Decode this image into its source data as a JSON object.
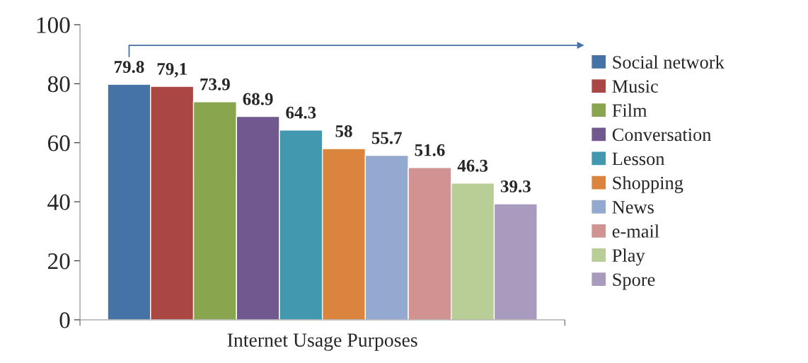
{
  "chart_data": {
    "type": "bar",
    "xlabel": "Internet Usage Purposes",
    "categories": [
      null
    ],
    "ylim": [
      0,
      100
    ],
    "yticks": [
      0,
      20,
      40,
      60,
      80,
      100
    ],
    "grid": false,
    "legend": "right",
    "series": [
      {
        "name": "Social network",
        "color": "#4572a7",
        "values": [
          79.8
        ],
        "value_labels": [
          "79.8"
        ]
      },
      {
        "name": "Music",
        "color": "#aa4643",
        "values": [
          79.1
        ],
        "value_labels": [
          "79,1"
        ]
      },
      {
        "name": "Film",
        "color": "#89a54e",
        "values": [
          73.9
        ],
        "value_labels": [
          "73.9"
        ]
      },
      {
        "name": "Conversation",
        "color": "#71588f",
        "values": [
          68.9
        ],
        "value_labels": [
          "68.9"
        ]
      },
      {
        "name": "Lesson",
        "color": "#4198af",
        "values": [
          64.3
        ],
        "value_labels": [
          "64.3"
        ]
      },
      {
        "name": "Shopping",
        "color": "#db843d",
        "values": [
          58
        ],
        "value_labels": [
          "58"
        ]
      },
      {
        "name": "News",
        "color": "#93a9cf",
        "values": [
          55.7
        ],
        "value_labels": [
          "55.7"
        ]
      },
      {
        "name": "e-mail",
        "color": "#d19392",
        "values": [
          51.6
        ],
        "value_labels": [
          "51.6"
        ]
      },
      {
        "name": "Play",
        "color": "#b9cd96",
        "values": [
          46.3
        ],
        "value_labels": [
          "46.3"
        ]
      },
      {
        "name": "Spore",
        "color": "#a99bbd",
        "values": [
          39.3
        ],
        "value_labels": [
          "39.3"
        ]
      }
    ]
  }
}
